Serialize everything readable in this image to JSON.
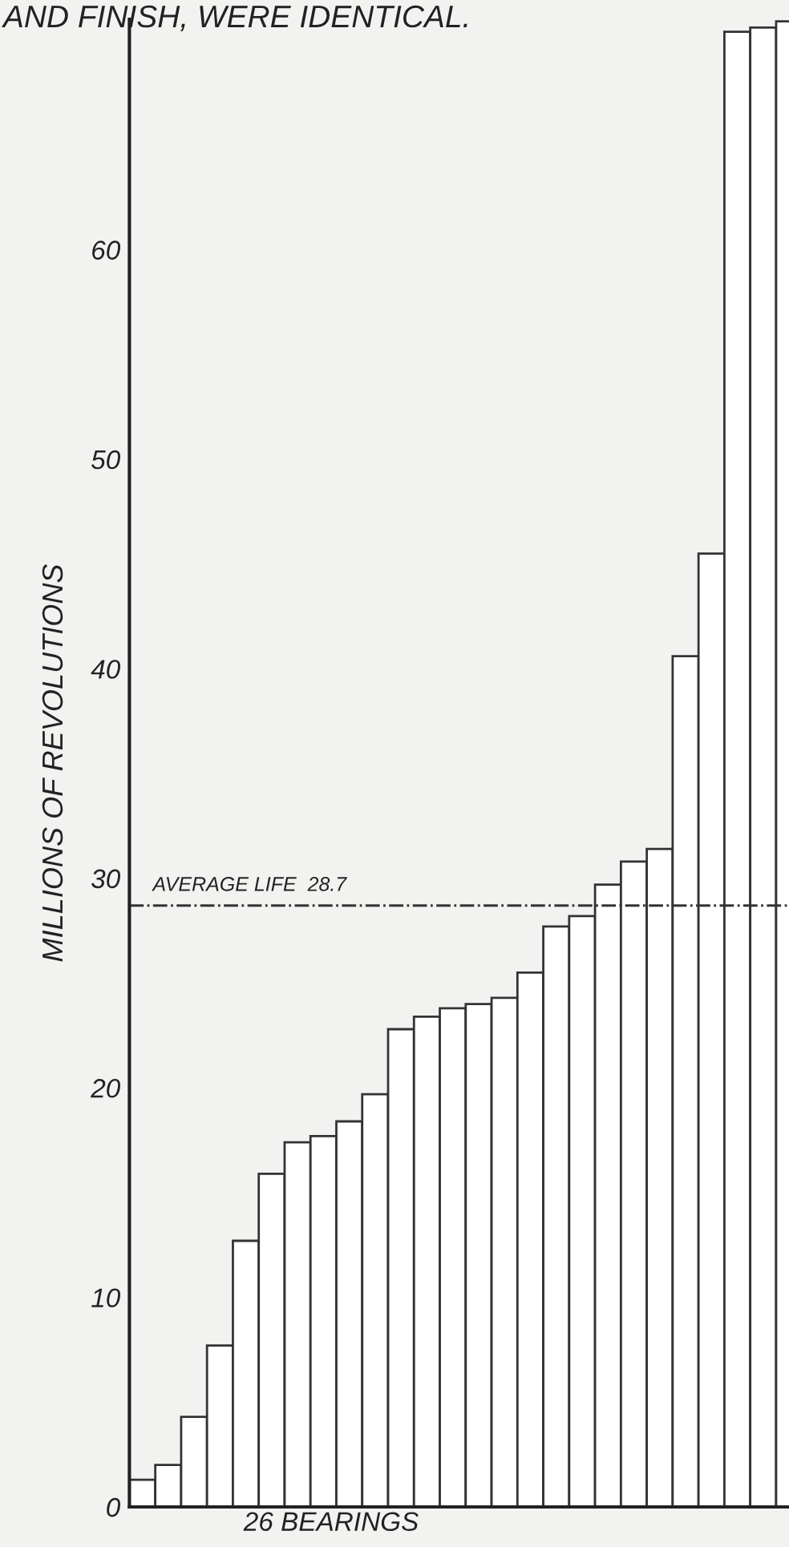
{
  "chart_data": {
    "type": "bar",
    "title": "AND FINISH, WERE IDENTICAL.",
    "xlabel": "26 BEARINGS",
    "ylabel": "MILLIONS OF REVOLUTIONS",
    "categories": [
      null,
      null,
      null,
      null,
      null,
      null,
      null,
      null,
      null,
      null,
      null,
      null,
      null,
      null,
      null,
      null,
      null,
      null,
      null,
      null,
      null,
      null,
      null,
      null,
      null,
      null
    ],
    "values": [
      1.3,
      2.0,
      4.3,
      7.7,
      12.7,
      15.9,
      17.4,
      17.7,
      18.4,
      19.7,
      22.8,
      23.4,
      23.8,
      24.0,
      24.3,
      25.5,
      27.7,
      28.2,
      29.7,
      30.8,
      31.4,
      40.6,
      45.5,
      70.4,
      70.6,
      70.9
    ],
    "color": "#ffffff",
    "ylim": [
      0,
      71
    ],
    "yticks": [
      0,
      10,
      20,
      30,
      40,
      50,
      60
    ],
    "grid": false,
    "ref_lines": [
      {
        "axis": "y",
        "value": 28.7,
        "label": "AVERAGE LIFE  28.7",
        "line_style": "dashdot",
        "color": "#333333"
      }
    ]
  }
}
